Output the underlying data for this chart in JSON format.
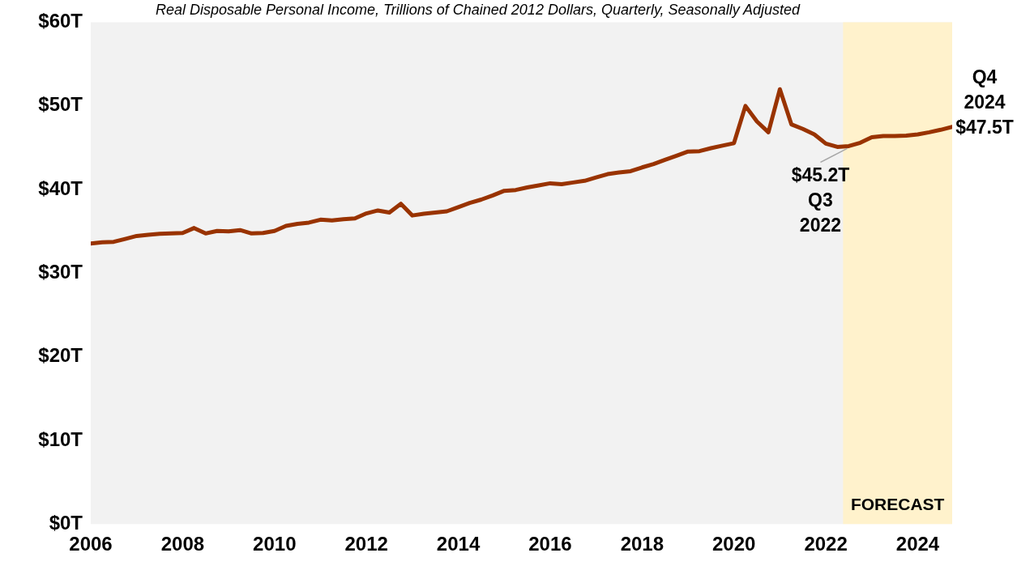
{
  "chart_data": {
    "type": "line",
    "title": "Real Disposable Personal Income, Trillions of Chained 2012 Dollars, Quarterly, Seasonally Adjusted",
    "x": [
      2006,
      2006.25,
      2006.5,
      2006.75,
      2007,
      2007.25,
      2007.5,
      2007.75,
      2008,
      2008.25,
      2008.5,
      2008.75,
      2009,
      2009.25,
      2009.5,
      2009.75,
      2010,
      2010.25,
      2010.5,
      2010.75,
      2011,
      2011.25,
      2011.5,
      2011.75,
      2012,
      2012.25,
      2012.5,
      2012.75,
      2013,
      2013.25,
      2013.5,
      2013.75,
      2014,
      2014.25,
      2014.5,
      2014.75,
      2015,
      2015.25,
      2015.5,
      2015.75,
      2016,
      2016.25,
      2016.5,
      2016.75,
      2017,
      2017.25,
      2017.5,
      2017.75,
      2018,
      2018.25,
      2018.5,
      2018.75,
      2019,
      2019.25,
      2019.5,
      2019.75,
      2020,
      2020.25,
      2020.5,
      2020.75,
      2021,
      2021.25,
      2021.5,
      2021.75,
      2022,
      2022.25,
      2022.5,
      2022.75,
      2023,
      2023.25,
      2023.5,
      2023.75,
      2024,
      2024.25,
      2024.5,
      2024.75
    ],
    "series": [
      {
        "color": "#993300",
        "values": [
          33.55,
          33.7,
          33.75,
          34.1,
          34.45,
          34.6,
          34.7,
          34.75,
          34.8,
          35.4,
          34.75,
          35.05,
          35.0,
          35.15,
          34.75,
          34.8,
          35.05,
          35.65,
          35.9,
          36.05,
          36.4,
          36.3,
          36.45,
          36.55,
          37.15,
          37.5,
          37.25,
          38.3,
          36.9,
          37.1,
          37.25,
          37.4,
          37.9,
          38.4,
          38.8,
          39.3,
          39.85,
          39.95,
          40.25,
          40.5,
          40.75,
          40.65,
          40.85,
          41.05,
          41.45,
          41.85,
          42.05,
          42.2,
          42.65,
          43.05,
          43.55,
          44.05,
          44.55,
          44.6,
          44.95,
          45.25,
          45.55,
          50.0,
          48.15,
          46.85,
          52.0,
          47.8,
          47.25,
          46.6,
          45.5,
          45.1,
          45.2,
          45.6,
          46.25,
          46.4,
          46.4,
          46.45,
          46.6,
          46.85,
          47.15,
          47.5
        ]
      }
    ],
    "xlim": [
      2006,
      2024.75
    ],
    "xticks": [
      2006,
      2008,
      2010,
      2012,
      2014,
      2016,
      2018,
      2020,
      2022,
      2024
    ],
    "ylim": [
      0,
      60
    ],
    "yticks": [
      {
        "value": 0,
        "label": "$0T"
      },
      {
        "value": 10,
        "label": "$10T"
      },
      {
        "value": 20,
        "label": "$20T"
      },
      {
        "value": 30,
        "label": "$30T"
      },
      {
        "value": 40,
        "label": "$40T"
      },
      {
        "value": 50,
        "label": "$50T"
      },
      {
        "value": 60,
        "label": "$60T"
      }
    ],
    "bands": [
      {
        "axis": "x",
        "from": 2022.375,
        "to": 2024.75,
        "label": "FORECAST",
        "color": "#fff2cc"
      }
    ],
    "annotations": [
      {
        "text": "$45.2T\nQ3\n2022",
        "x": 2022.5,
        "y": 45.2
      },
      {
        "text": "Q4\n2024\n$47.5T",
        "x": 2024.75,
        "y": 47.5
      }
    ],
    "grid": false,
    "legend": false,
    "marker": "none",
    "line_style": "solid"
  }
}
